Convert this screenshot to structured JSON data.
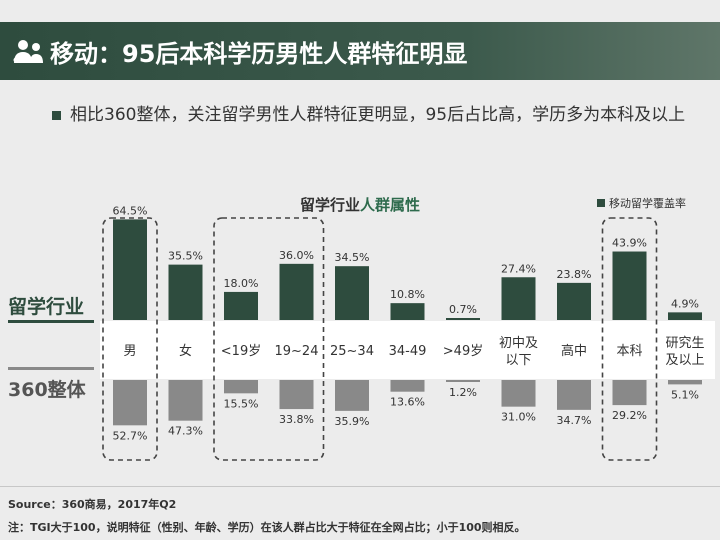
{
  "header": {
    "title": "移动：95后本科学历男性人群特征明显"
  },
  "summary": {
    "text": "相比360整体，关注留学男性人群特征更明显，95后占比高，学历多为本科及以上"
  },
  "chart_data": {
    "type": "bar",
    "title_prefix": "留学行业",
    "title_highlight": "人群属性",
    "legend": {
      "label": "移动留学覆盖率",
      "position": "top-right"
    },
    "row_labels": {
      "top": "留学行业",
      "bottom": "360整体"
    },
    "categories": [
      [
        "男"
      ],
      [
        "女"
      ],
      [
        "<19岁"
      ],
      [
        "19~24"
      ],
      [
        "25~34"
      ],
      [
        "34-49"
      ],
      [
        ">49岁"
      ],
      [
        "初中及",
        "以下"
      ],
      [
        "高中"
      ],
      [
        "本科"
      ],
      [
        "研究生",
        "及以上"
      ]
    ],
    "series": [
      {
        "name": "留学行业",
        "values": [
          64.5,
          35.5,
          18.0,
          36.0,
          34.5,
          10.8,
          0.7,
          27.4,
          23.8,
          43.9,
          4.9
        ],
        "labels": [
          "64.5%",
          "35.5%",
          "18.0%",
          "36.0%",
          "34.5%",
          "10.8%",
          "0.7%",
          "27.4%",
          "23.8%",
          "43.9%",
          "4.9%"
        ],
        "color": "#2e4c3e"
      },
      {
        "name": "360整体",
        "values": [
          52.7,
          47.3,
          15.5,
          33.8,
          35.9,
          13.6,
          1.2,
          31.0,
          34.7,
          29.2,
          5.1
        ],
        "labels": [
          "52.7%",
          "47.3%",
          "15.5%",
          "33.8%",
          "35.9%",
          "13.6%",
          "1.2%",
          "31.0%",
          "34.7%",
          "29.2%",
          "5.1%"
        ],
        "color": "#898989"
      }
    ],
    "ylim": [
      0,
      70
    ],
    "highlight_groups": [
      [
        0,
        0
      ],
      [
        2,
        3
      ],
      [
        9,
        9
      ]
    ],
    "grid": false
  },
  "footer": {
    "source": "Source：360商易，2017年Q2",
    "note": "注：TGI大于100，说明特征（性别、年龄、学历）在该人群占比大于特征在全网占比；小于100则相反。"
  }
}
